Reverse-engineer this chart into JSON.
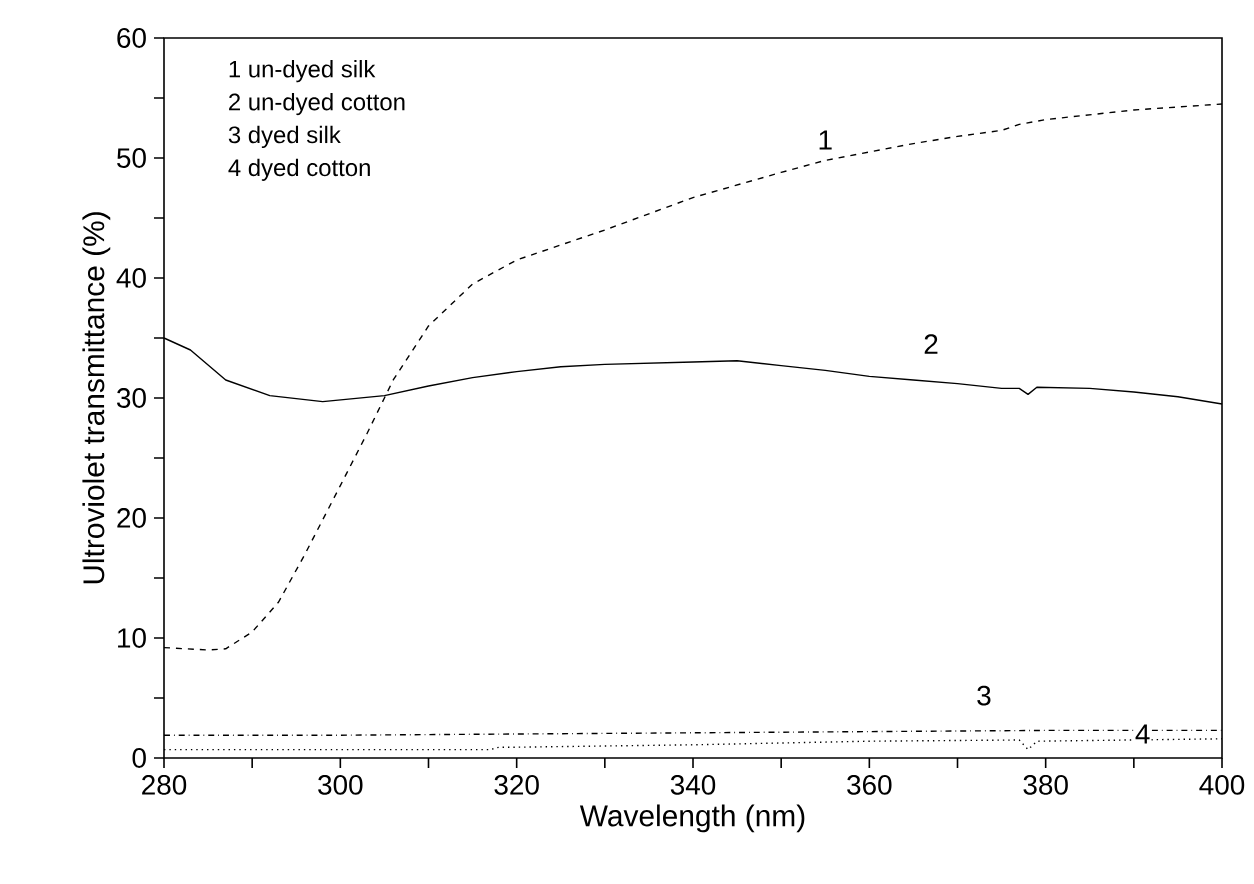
{
  "chart_data": {
    "type": "line",
    "xlabel": "Wavelength (nm)",
    "ylabel": "Ultroviolet transmittance (%)",
    "xlim": [
      280,
      400
    ],
    "ylim": [
      0,
      60
    ],
    "xticks": [
      280,
      {
        "value": 290,
        "label": null
      },
      300,
      {
        "value": 310,
        "label": null
      },
      320,
      {
        "value": 330,
        "label": null
      },
      340,
      {
        "value": 350,
        "label": null
      },
      360,
      {
        "value": 370,
        "label": null
      },
      380,
      {
        "value": 390,
        "label": null
      },
      400
    ],
    "yticks": [
      0,
      {
        "value": 5,
        "label": null
      },
      10,
      {
        "value": 15,
        "label": null
      },
      20,
      {
        "value": 25,
        "label": null
      },
      30,
      {
        "value": 35,
        "label": null
      },
      40,
      {
        "value": 45,
        "label": null
      },
      50,
      {
        "value": 55,
        "label": null
      },
      60
    ],
    "grid": false,
    "marker": "none",
    "series": [
      {
        "color": "#000000",
        "line_style": "dashed",
        "x": [
          280,
          285,
          287,
          290,
          293,
          296,
          300,
          303,
          306,
          310,
          315,
          320,
          330,
          340,
          350,
          355,
          360,
          365,
          370,
          375,
          377,
          380,
          390,
          400
        ],
        "values": [
          9.2,
          9.0,
          9.1,
          10.5,
          13,
          17,
          22.7,
          27,
          31.5,
          36,
          39.5,
          41.5,
          44,
          46.7,
          48.8,
          49.8,
          50.5,
          51.2,
          51.8,
          52.3,
          52.8,
          53.2,
          54,
          54.5
        ]
      },
      {
        "color": "#000000",
        "line_style": "solid",
        "x": [
          280,
          283,
          287,
          292,
          298,
          305,
          310,
          315,
          320,
          325,
          330,
          340,
          345,
          350,
          355,
          360,
          365,
          370,
          375,
          377,
          378,
          379,
          385,
          390,
          395,
          400
        ],
        "values": [
          35,
          34,
          31.5,
          30.2,
          29.7,
          30.2,
          31,
          31.7,
          32.2,
          32.6,
          32.8,
          33,
          33.1,
          32.7,
          32.3,
          31.8,
          31.5,
          31.2,
          30.8,
          30.8,
          30.3,
          30.9,
          30.8,
          30.5,
          30.1,
          29.5
        ]
      },
      {
        "color": "#000000",
        "line_style": "dashdot",
        "x": [
          280,
          300,
          320,
          340,
          360,
          380,
          400
        ],
        "values": [
          1.9,
          1.9,
          2.0,
          2.1,
          2.2,
          2.3,
          2.3
        ]
      },
      {
        "color": "#000000",
        "line_style": "dotted",
        "x": [
          280,
          300,
          317,
          318,
          320,
          340,
          360,
          377,
          378,
          379,
          400
        ],
        "values": [
          0.7,
          0.7,
          0.7,
          0.9,
          0.9,
          1.1,
          1.4,
          1.5,
          0.7,
          1.4,
          1.6
        ]
      }
    ],
    "annotations": [
      "1 un-dyed silk",
      "2 un-dyed cotton",
      "3 dyed silk",
      "4 dyed cotton",
      {
        "text": "1",
        "x": 355,
        "y": 51.5
      },
      {
        "text": "2",
        "x": 367,
        "y": 34.5
      },
      {
        "text": "3",
        "x": 373,
        "y": 5.2
      },
      {
        "text": "4",
        "x": 391,
        "y": 2
      }
    ]
  }
}
